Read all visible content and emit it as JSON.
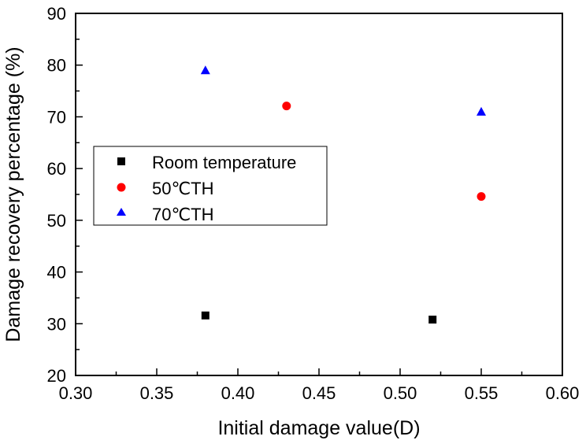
{
  "chart_data": {
    "type": "scatter",
    "title": "",
    "xlabel": "Initial damage value(D)",
    "ylabel": "Damage recovery percentage (%)",
    "xlim": [
      0.3,
      0.6
    ],
    "ylim": [
      20,
      90
    ],
    "x_ticks": [
      "0.30",
      "0.35",
      "0.40",
      "0.45",
      "0.50",
      "0.55",
      "0.60"
    ],
    "y_ticks": [
      "20",
      "30",
      "40",
      "50",
      "60",
      "70",
      "80",
      "90"
    ],
    "grid": false,
    "legend_position": "middle-left",
    "series": [
      {
        "name": "Room temperature",
        "marker": "square",
        "color": "#000000",
        "points": [
          {
            "x": 0.38,
            "y": 31.6
          },
          {
            "x": 0.52,
            "y": 30.8
          }
        ]
      },
      {
        "name": "50℃TH",
        "marker": "circle",
        "color": "#ff0000",
        "points": [
          {
            "x": 0.43,
            "y": 72.1
          },
          {
            "x": 0.55,
            "y": 54.6
          }
        ]
      },
      {
        "name": "70℃TH",
        "marker": "triangle",
        "color": "#0000ff",
        "points": [
          {
            "x": 0.38,
            "y": 79.0
          },
          {
            "x": 0.55,
            "y": 71.0
          }
        ]
      }
    ]
  }
}
